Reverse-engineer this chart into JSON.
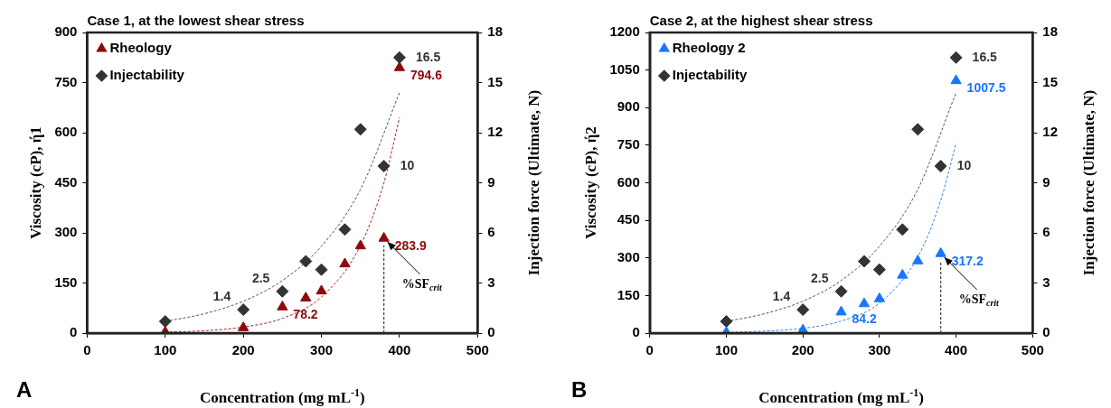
{
  "chart_data": [
    {
      "type": "scatter",
      "title": "Case 1, at the lowest shear stress",
      "xlabel": "Concentration (mg mL$^{-1}$)",
      "ylabel": "Viscosity (cP), ή1",
      "y2label": "Injection force (Ultimate, N)",
      "xlim": [
        0,
        500
      ],
      "xticks": [
        0,
        100,
        200,
        300,
        400,
        500
      ],
      "ylim": [
        0,
        900
      ],
      "yticks": [
        0,
        150,
        300,
        450,
        600,
        750,
        900
      ],
      "y2lim": [
        0,
        18
      ],
      "y2ticks": [
        0,
        3,
        6,
        9,
        12,
        15,
        18
      ],
      "grid": false,
      "legend": "top left",
      "series": [
        {
          "name": "Rheology",
          "marker": "triangle",
          "color": "#8b0a0a",
          "x": [
            100,
            200,
            250,
            280,
            300,
            330,
            350,
            380,
            400
          ],
          "values": [
            3,
            16,
            78.2,
            105,
            126,
            207,
            261,
            283.9,
            794.6
          ],
          "value_labels": [
            null,
            null,
            "78.2",
            null,
            null,
            null,
            null,
            "283.9",
            "794.6"
          ]
        },
        {
          "name": "Injectability",
          "marker": "diamond",
          "color": "#333333",
          "axis": "y2",
          "x": [
            100,
            200,
            250,
            280,
            300,
            330,
            350,
            380,
            400
          ],
          "values": [
            0.7,
            1.4,
            2.5,
            4.3,
            3.8,
            6.2,
            12.2,
            10,
            16.5
          ],
          "value_labels": [
            null,
            "1.4",
            "2.5",
            null,
            null,
            null,
            null,
            "10",
            "16.5"
          ]
        },
        {
          "type": "line",
          "marker": "none",
          "line_style": "dashed",
          "color": "#555555",
          "axis": "y2",
          "x": [
            100,
            150,
            200,
            250,
            300,
            350,
            400
          ],
          "values": [
            0.7,
            1.16,
            1.91,
            3.15,
            5.2,
            8.6,
            14.4
          ]
        },
        {
          "type": "line",
          "marker": "none",
          "line_style": "dashed",
          "color": "#b02020",
          "x": [
            100,
            150,
            200,
            250,
            300,
            350,
            380,
            400
          ],
          "values": [
            3,
            7,
            18,
            44,
            108,
            262,
            450,
            645
          ]
        }
      ],
      "ref_lines": [
        {
          "axis": "x",
          "value": 380,
          "color": "#404040",
          "line_style": "dashed"
        }
      ],
      "annotations": [
        "A",
        {
          "text": "%SF$_{crit}$",
          "x": 380,
          "y": 283.9
        }
      ]
    },
    {
      "type": "scatter",
      "title": "Case 2, at the highest shear stress",
      "xlabel": "Concentration (mg mL$^{-1}$)",
      "ylabel": "Viscosity (cP), ή2",
      "y2label": "Injection force (Ultimate, N)",
      "xlim": [
        0,
        500
      ],
      "xticks": [
        0,
        100,
        200,
        300,
        400,
        500
      ],
      "ylim": [
        0,
        1200
      ],
      "yticks": [
        0,
        150,
        300,
        450,
        600,
        750,
        900,
        1050,
        1200
      ],
      "y2lim": [
        0,
        18
      ],
      "y2ticks": [
        0,
        3,
        6,
        9,
        12,
        15,
        18
      ],
      "grid": false,
      "legend": "top left",
      "series": [
        {
          "name": "Rheology 2",
          "marker": "triangle",
          "color": "#1a75ff",
          "x": [
            100,
            200,
            250,
            280,
            300,
            330,
            350,
            380,
            400
          ],
          "values": [
            3,
            12,
            84.2,
            117,
            137,
            231,
            288,
            317.2,
            1007.5
          ],
          "value_labels": [
            null,
            null,
            "84.2",
            null,
            null,
            null,
            null,
            "317.2",
            "1007.5"
          ]
        },
        {
          "name": "Injectability",
          "marker": "diamond",
          "color": "#333333",
          "axis": "y2",
          "x": [
            100,
            200,
            250,
            280,
            300,
            330,
            350,
            380,
            400
          ],
          "values": [
            0.7,
            1.4,
            2.5,
            4.3,
            3.8,
            6.2,
            12.2,
            10,
            16.5
          ],
          "value_labels": [
            null,
            "1.4",
            "2.5",
            null,
            null,
            null,
            null,
            "10",
            "16.5"
          ]
        },
        {
          "type": "line",
          "marker": "none",
          "line_style": "dashed",
          "color": "#555555",
          "axis": "y2",
          "x": [
            100,
            150,
            200,
            250,
            300,
            350,
            400
          ],
          "values": [
            0.7,
            1.16,
            1.91,
            3.15,
            5.2,
            8.6,
            14.4
          ]
        },
        {
          "type": "line",
          "marker": "none",
          "line_style": "dashed",
          "color": "#3a7fd9",
          "x": [
            100,
            150,
            200,
            250,
            300,
            350,
            380,
            400
          ],
          "values": [
            3,
            8,
            19,
            48,
            120,
            304,
            530,
            758
          ]
        }
      ],
      "ref_lines": [
        {
          "axis": "x",
          "value": 380,
          "color": "#404040",
          "line_style": "dashed"
        }
      ],
      "annotations": [
        "B",
        {
          "text": "%SF$_{crit}$",
          "x": 380,
          "y": 317.2
        }
      ]
    }
  ]
}
